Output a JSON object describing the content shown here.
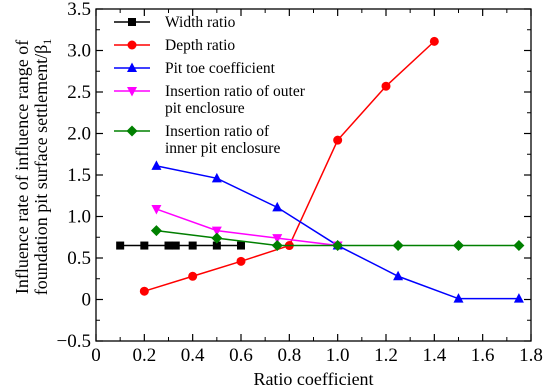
{
  "chart_data": {
    "type": "line",
    "xlabel": "Ratio coefficient",
    "ylabel_lines": [
      "Influence rate of influence range of",
      "foundation pit surface settlement/β",
      "1"
    ],
    "xlim": [
      0,
      1.8
    ],
    "ylim": [
      -0.5,
      3.5
    ],
    "xticks": [
      0,
      0.2,
      0.4,
      0.6,
      0.8,
      1.0,
      1.2,
      1.4,
      1.6,
      1.8
    ],
    "xtick_labels": [
      "0",
      "0.2",
      "0.4",
      "0.6",
      "0.8",
      "1.0",
      "1.2",
      "1.4",
      "1.6",
      "1.8"
    ],
    "yticks": [
      -0.5,
      0,
      0.5,
      1.0,
      1.5,
      2.0,
      2.5,
      3.0,
      3.5
    ],
    "ytick_labels": [
      "−0.5",
      "0",
      "0.5",
      "1.0",
      "1.5",
      "2.0",
      "2.5",
      "3.0",
      "3.5"
    ],
    "legend_position": "top-left",
    "grid": false,
    "series": [
      {
        "name": "Width ratio",
        "legend_lines": [
          "Width ratio"
        ],
        "color": "#000000",
        "marker": "square",
        "x": [
          0.1,
          0.2,
          0.3,
          0.33,
          0.4,
          0.5,
          0.6
        ],
        "y": [
          0.65,
          0.65,
          0.65,
          0.65,
          0.65,
          0.65,
          0.65
        ]
      },
      {
        "name": "Depth ratio",
        "legend_lines": [
          "Depth ratio"
        ],
        "color": "#ff0000",
        "marker": "circle",
        "x": [
          0.2,
          0.4,
          0.6,
          0.8,
          1.0,
          1.2,
          1.4
        ],
        "y": [
          0.1,
          0.28,
          0.46,
          0.65,
          1.92,
          2.57,
          3.11
        ]
      },
      {
        "name": "Pit toe coefficient",
        "legend_lines": [
          "Pit toe coefficient"
        ],
        "color": "#0000ff",
        "marker": "triangle-up",
        "x": [
          0.25,
          0.5,
          0.75,
          1.0,
          1.25,
          1.5,
          1.75
        ],
        "y": [
          1.61,
          1.46,
          1.11,
          0.65,
          0.28,
          0.01,
          0.01
        ]
      },
      {
        "name": "Insertion ratio of outer pit enclosure",
        "legend_lines": [
          "Insertion ratio of outer",
          "pit enclosure"
        ],
        "color": "#ff00ff",
        "marker": "triangle-down",
        "x": [
          0.25,
          0.5,
          0.75,
          1.0
        ],
        "y": [
          1.09,
          0.83,
          0.74,
          0.65
        ]
      },
      {
        "name": "Insertion ratio of inner pit enclosure",
        "legend_lines": [
          "Insertion ratio of",
          "inner pit enclosure"
        ],
        "color": "#008000",
        "marker": "diamond",
        "x": [
          0.25,
          0.5,
          0.75,
          1.0,
          1.25,
          1.5,
          1.75
        ],
        "y": [
          0.83,
          0.74,
          0.65,
          0.65,
          0.65,
          0.65,
          0.65
        ]
      }
    ]
  }
}
